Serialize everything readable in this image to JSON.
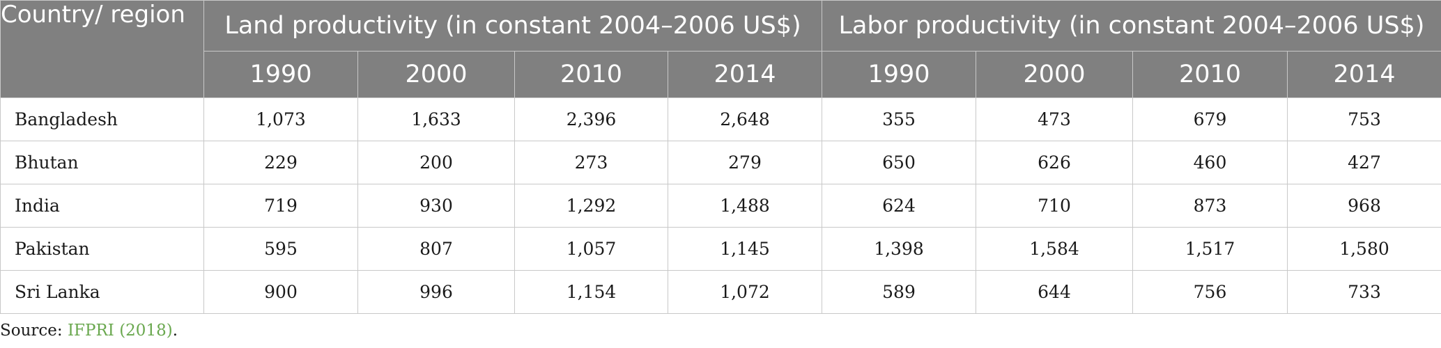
{
  "table": {
    "header": {
      "country_label": "Country/ region",
      "land_group": "Land productivity (in constant 2004–2006 US$)",
      "labor_group": "Labor productivity (in constant 2004–2006 US$)",
      "years": [
        "1990",
        "2000",
        "2010",
        "2014"
      ]
    },
    "rows": [
      {
        "country": "Bangladesh",
        "land": [
          "1,073",
          "1,633",
          "2,396",
          "2,648"
        ],
        "labor": [
          "355",
          "473",
          "679",
          "753"
        ]
      },
      {
        "country": "Bhutan",
        "land": [
          "229",
          "200",
          "273",
          "279"
        ],
        "labor": [
          "650",
          "626",
          "460",
          "427"
        ]
      },
      {
        "country": "India",
        "land": [
          "719",
          "930",
          "1,292",
          "1,488"
        ],
        "labor": [
          "624",
          "710",
          "873",
          "968"
        ]
      },
      {
        "country": "Pakistan",
        "land": [
          "595",
          "807",
          "1,057",
          "1,145"
        ],
        "labor": [
          "1,398",
          "1,584",
          "1,517",
          "1,580"
        ]
      },
      {
        "country": "Sri Lanka",
        "land": [
          "900",
          "996",
          "1,154",
          "1,072"
        ],
        "labor": [
          "589",
          "644",
          "756",
          "733"
        ]
      }
    ]
  },
  "source": {
    "prefix": "Source: ",
    "link_text": "IFPRI (2018)",
    "suffix": "."
  },
  "colors": {
    "header_bg": "#808080",
    "header_text": "#ffffff",
    "border": "#c8c8c8",
    "link": "#6aa84f"
  }
}
